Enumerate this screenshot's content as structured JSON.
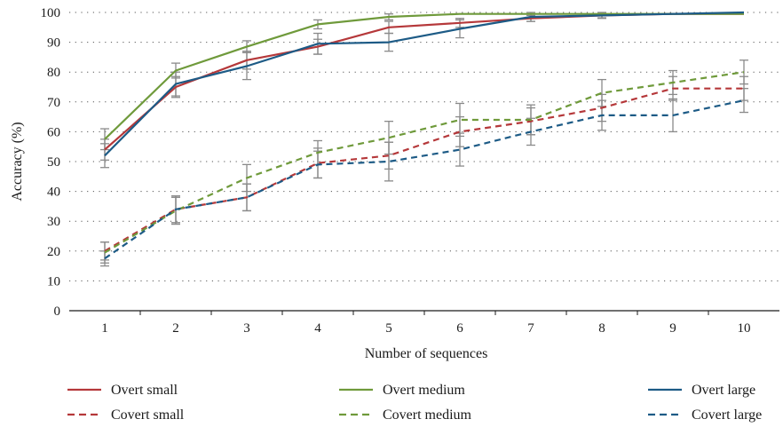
{
  "chart_data": {
    "type": "line",
    "xlabel": "Number of sequences",
    "ylabel": "Accuracy (%)",
    "ylim": [
      0,
      100
    ],
    "yticks": [
      0,
      10,
      20,
      30,
      40,
      50,
      60,
      70,
      80,
      90,
      100
    ],
    "x": [
      1,
      2,
      3,
      4,
      5,
      6,
      7,
      8,
      9,
      10
    ],
    "grid": "horizontal dotted",
    "legend_position": "bottom",
    "series": [
      {
        "name": "Overt small",
        "color": "#b5383a",
        "dash": false,
        "values": [
          54,
          75,
          84,
          88.5,
          95,
          96.5,
          98,
          99,
          99.5,
          99.5
        ],
        "errors": [
          3.5,
          3.5,
          3,
          2.5,
          2,
          1.5,
          1,
          0.8,
          0.5,
          0.5
        ]
      },
      {
        "name": "Overt medium",
        "color": "#6f9a3b",
        "dash": false,
        "values": [
          57.5,
          80.5,
          88.5,
          96,
          98.5,
          99.5,
          99.5,
          99.5,
          99.5,
          99.5
        ],
        "errors": [
          3.5,
          2.5,
          2,
          1.5,
          1,
          0.5,
          0.5,
          0.5,
          0.5,
          0.5
        ]
      },
      {
        "name": "Overt large",
        "color": "#1d5b86",
        "dash": false,
        "values": [
          52,
          76,
          82,
          89.5,
          90,
          94.5,
          98.5,
          99,
          99.5,
          100
        ],
        "errors": [
          4,
          4,
          4.5,
          3.5,
          3,
          3,
          1.5,
          1,
          0.5,
          0.3
        ]
      },
      {
        "name": "Covert small",
        "color": "#b5383a",
        "dash": true,
        "values": [
          20,
          34,
          38,
          49.5,
          52,
          60,
          63.5,
          68,
          74.5,
          74.5
        ],
        "errors": [
          3,
          4.5,
          4.5,
          5,
          4.5,
          5,
          4.5,
          4.5,
          4,
          4
        ]
      },
      {
        "name": "Covert medium",
        "color": "#6f9a3b",
        "dash": true,
        "values": [
          19.5,
          33.5,
          44.5,
          53,
          58,
          64,
          64,
          73,
          76.5,
          80
        ],
        "errors": [
          3.5,
          4.5,
          4.5,
          4,
          5.5,
          5.5,
          5,
          4.5,
          4,
          4
        ]
      },
      {
        "name": "Covert large",
        "color": "#1d5b86",
        "dash": true,
        "values": [
          17.5,
          34,
          38,
          49,
          50,
          54,
          60,
          65.5,
          65.5,
          70.5
        ],
        "errors": [
          2.5,
          4.5,
          4.5,
          4.5,
          6.5,
          5.5,
          4.5,
          5,
          5.5,
          4
        ]
      }
    ]
  }
}
